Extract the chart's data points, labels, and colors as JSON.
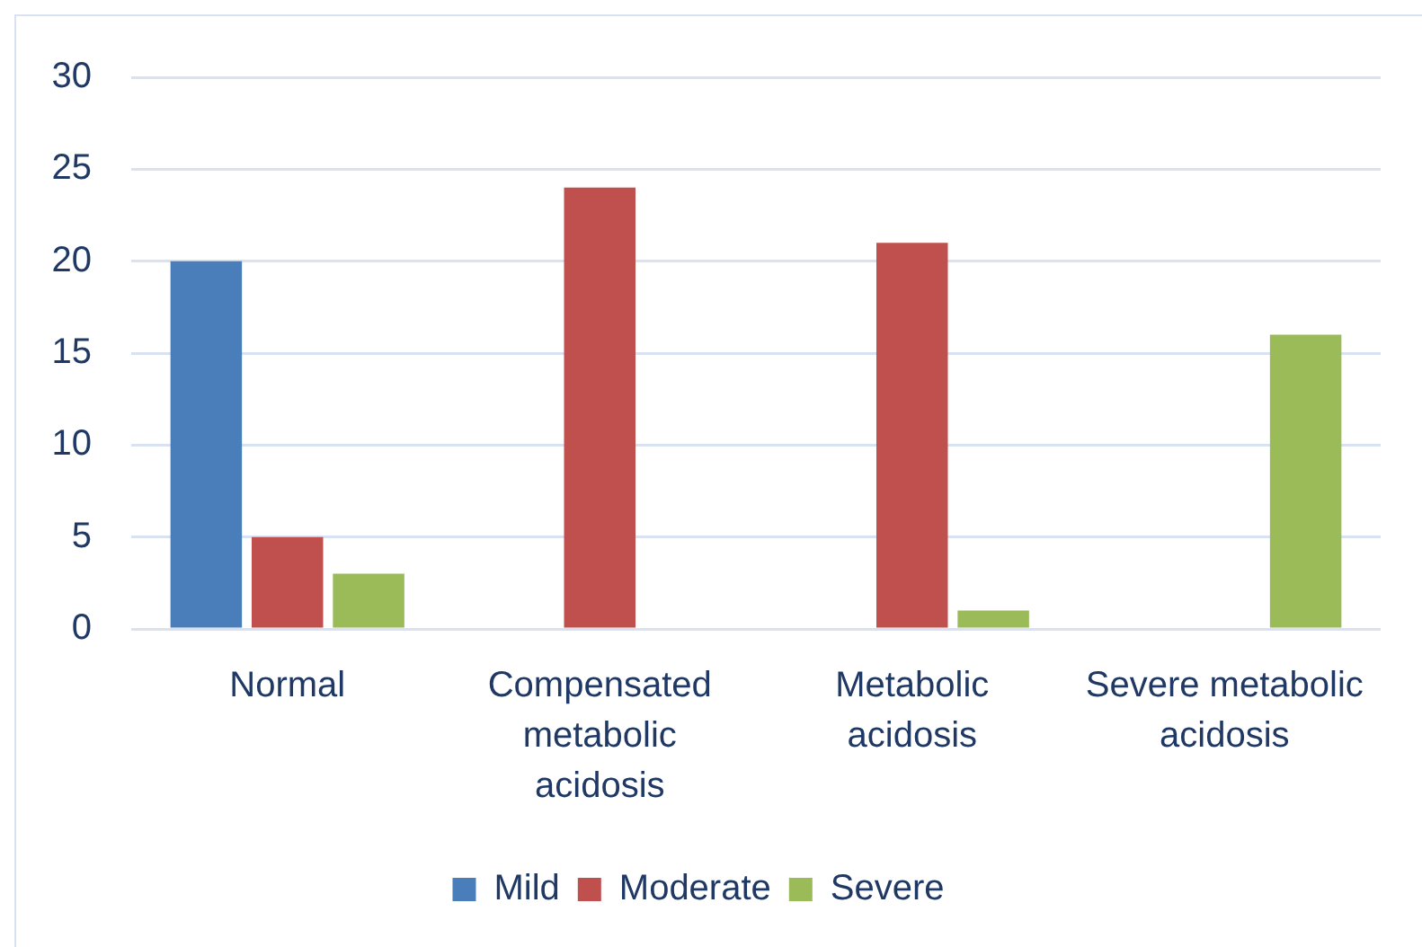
{
  "chart_data": {
    "type": "bar",
    "categories": [
      "Normal",
      "Compensated metabolic acidosis",
      "Metabolic acidosis",
      "Severe metabolic acidosis"
    ],
    "series": [
      {
        "name": "Mild",
        "color": "#4a7ebb",
        "values": [
          20,
          0,
          0,
          0
        ]
      },
      {
        "name": "Moderate",
        "color": "#c0504d",
        "values": [
          5,
          24,
          21,
          0
        ]
      },
      {
        "name": "Severe",
        "color": "#9bbb59",
        "values": [
          3,
          0,
          1,
          16
        ]
      }
    ],
    "ylim": [
      0,
      30
    ],
    "yticks": [
      0,
      5,
      10,
      15,
      20,
      25,
      30
    ],
    "grid": "y",
    "legend": "bottom"
  }
}
